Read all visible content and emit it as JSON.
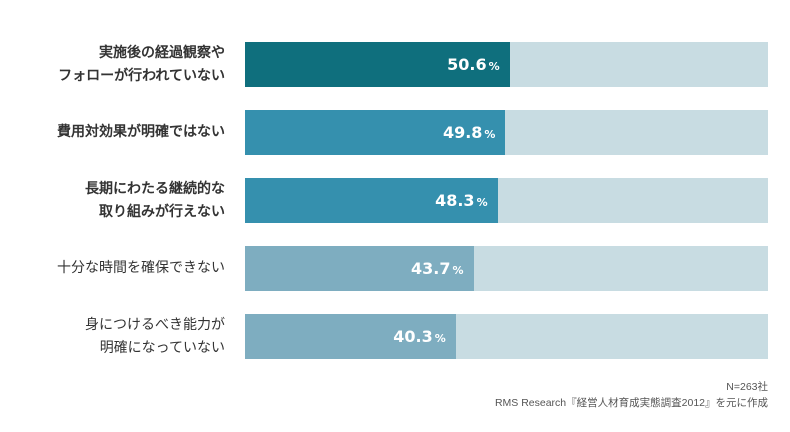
{
  "chart_data": {
    "type": "bar",
    "orientation": "horizontal",
    "xlim": [
      0,
      100
    ],
    "unit": "%",
    "categories": [
      "実施後の経過観察や\nフォローが行われていない",
      "費用対効果が明確ではない",
      "長期にわたる継続的な\n取り組みが行えない",
      "十分な時間を確保できない",
      "身につけるべき能力が\n明確になっていない"
    ],
    "values": [
      50.6,
      49.8,
      48.3,
      43.7,
      40.3
    ],
    "value_labels": [
      "50.6",
      "49.8",
      "48.3",
      "43.7",
      "40.3"
    ],
    "bold_labels": [
      true,
      true,
      true,
      false,
      false
    ],
    "bar_colors": [
      "#0f6f7d",
      "#3590ae",
      "#3590ae",
      "#7eadc0",
      "#7eadc0"
    ],
    "track_color": "#c8dce2",
    "grid": false,
    "legend": "none"
  },
  "notes": {
    "sample": "N=263社",
    "source": "RMS Research『経営人材育成実態調査2012』を元に作成"
  }
}
